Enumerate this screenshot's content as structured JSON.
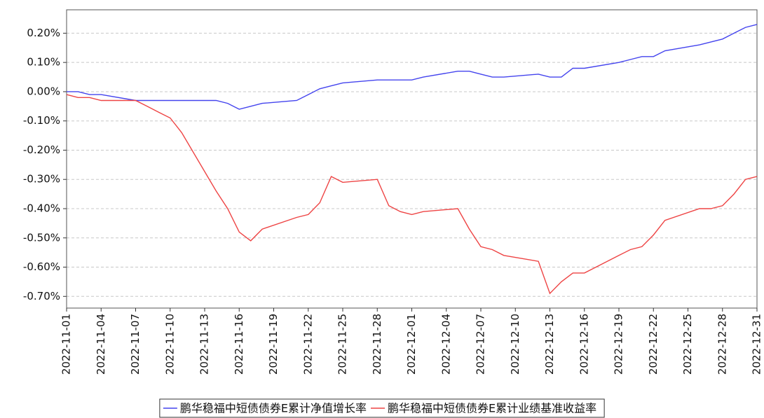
{
  "chart_data": {
    "type": "line",
    "x": [
      "2022-11-01",
      "2022-11-02",
      "2022-11-03",
      "2022-11-04",
      "2022-11-07",
      "2022-11-08",
      "2022-11-09",
      "2022-11-10",
      "2022-11-11",
      "2022-11-14",
      "2022-11-15",
      "2022-11-16",
      "2022-11-17",
      "2022-11-18",
      "2022-11-21",
      "2022-11-22",
      "2022-11-23",
      "2022-11-24",
      "2022-11-25",
      "2022-11-28",
      "2022-11-29",
      "2022-11-30",
      "2022-12-01",
      "2022-12-02",
      "2022-12-05",
      "2022-12-06",
      "2022-12-07",
      "2022-12-08",
      "2022-12-09",
      "2022-12-12",
      "2022-12-13",
      "2022-12-14",
      "2022-12-15",
      "2022-12-16",
      "2022-12-19",
      "2022-12-20",
      "2022-12-21",
      "2022-12-22",
      "2022-12-23",
      "2022-12-26",
      "2022-12-27",
      "2022-12-28",
      "2022-12-29",
      "2022-12-30",
      "2022-12-31"
    ],
    "series": [
      {
        "name": "鹏华稳福中短债债券E累计净值增长率",
        "color": "#4444ee",
        "values": [
          0,
          0,
          -0.01,
          -0.01,
          -0.03,
          -0.03,
          -0.03,
          -0.03,
          -0.03,
          -0.03,
          -0.04,
          -0.06,
          -0.05,
          -0.04,
          -0.03,
          -0.01,
          0.01,
          0.02,
          0.03,
          0.04,
          0.04,
          0.04,
          0.04,
          0.05,
          0.07,
          0.07,
          0.06,
          0.05,
          0.05,
          0.06,
          0.05,
          0.05,
          0.08,
          0.08,
          0.1,
          0.11,
          0.12,
          0.12,
          0.14,
          0.16,
          0.17,
          0.18,
          0.2,
          0.22,
          0.23
        ]
      },
      {
        "name": "鹏华稳福中短债债券E累计业绩基准收益率",
        "color": "#ee4444",
        "values": [
          -0.01,
          -0.02,
          -0.02,
          -0.03,
          -0.03,
          -0.05,
          -0.07,
          -0.09,
          -0.14,
          -0.34,
          -0.4,
          -0.48,
          -0.51,
          -0.47,
          -0.43,
          -0.42,
          -0.38,
          -0.29,
          -0.31,
          -0.3,
          -0.39,
          -0.41,
          -0.42,
          -0.41,
          -0.4,
          -0.47,
          -0.53,
          -0.54,
          -0.56,
          -0.58,
          -0.69,
          -0.65,
          -0.62,
          -0.62,
          -0.56,
          -0.54,
          -0.53,
          -0.49,
          -0.44,
          -0.4,
          -0.4,
          -0.39,
          -0.35,
          -0.3,
          -0.29
        ]
      }
    ],
    "xlim": [
      "2022-11-01",
      "2022-12-31"
    ],
    "xticks": [
      "2022-11-01",
      "2022-11-04",
      "2022-11-07",
      "2022-11-10",
      "2022-11-13",
      "2022-11-16",
      "2022-11-19",
      "2022-11-22",
      "2022-11-25",
      "2022-11-28",
      "2022-12-01",
      "2022-12-04",
      "2022-12-07",
      "2022-12-10",
      "2022-12-13",
      "2022-12-16",
      "2022-12-19",
      "2022-12-22",
      "2022-12-25",
      "2022-12-28",
      "2022-12-31"
    ],
    "ylim": [
      -0.74,
      0.28
    ],
    "yticks": [
      {
        "value": 0.2,
        "label": "0.20%"
      },
      {
        "value": 0.1,
        "label": "0.10%"
      },
      {
        "value": 0,
        "label": "0.00%"
      },
      {
        "value": -0.1,
        "label": "-0.10%"
      },
      {
        "value": -0.2,
        "label": "-0.20%"
      },
      {
        "value": -0.3,
        "label": "-0.30%"
      },
      {
        "value": -0.4,
        "label": "-0.40%"
      },
      {
        "value": -0.5,
        "label": "-0.50%"
      },
      {
        "value": -0.6,
        "label": "-0.60%"
      },
      {
        "value": -0.7,
        "label": "-0.70%"
      }
    ],
    "grid": true
  }
}
